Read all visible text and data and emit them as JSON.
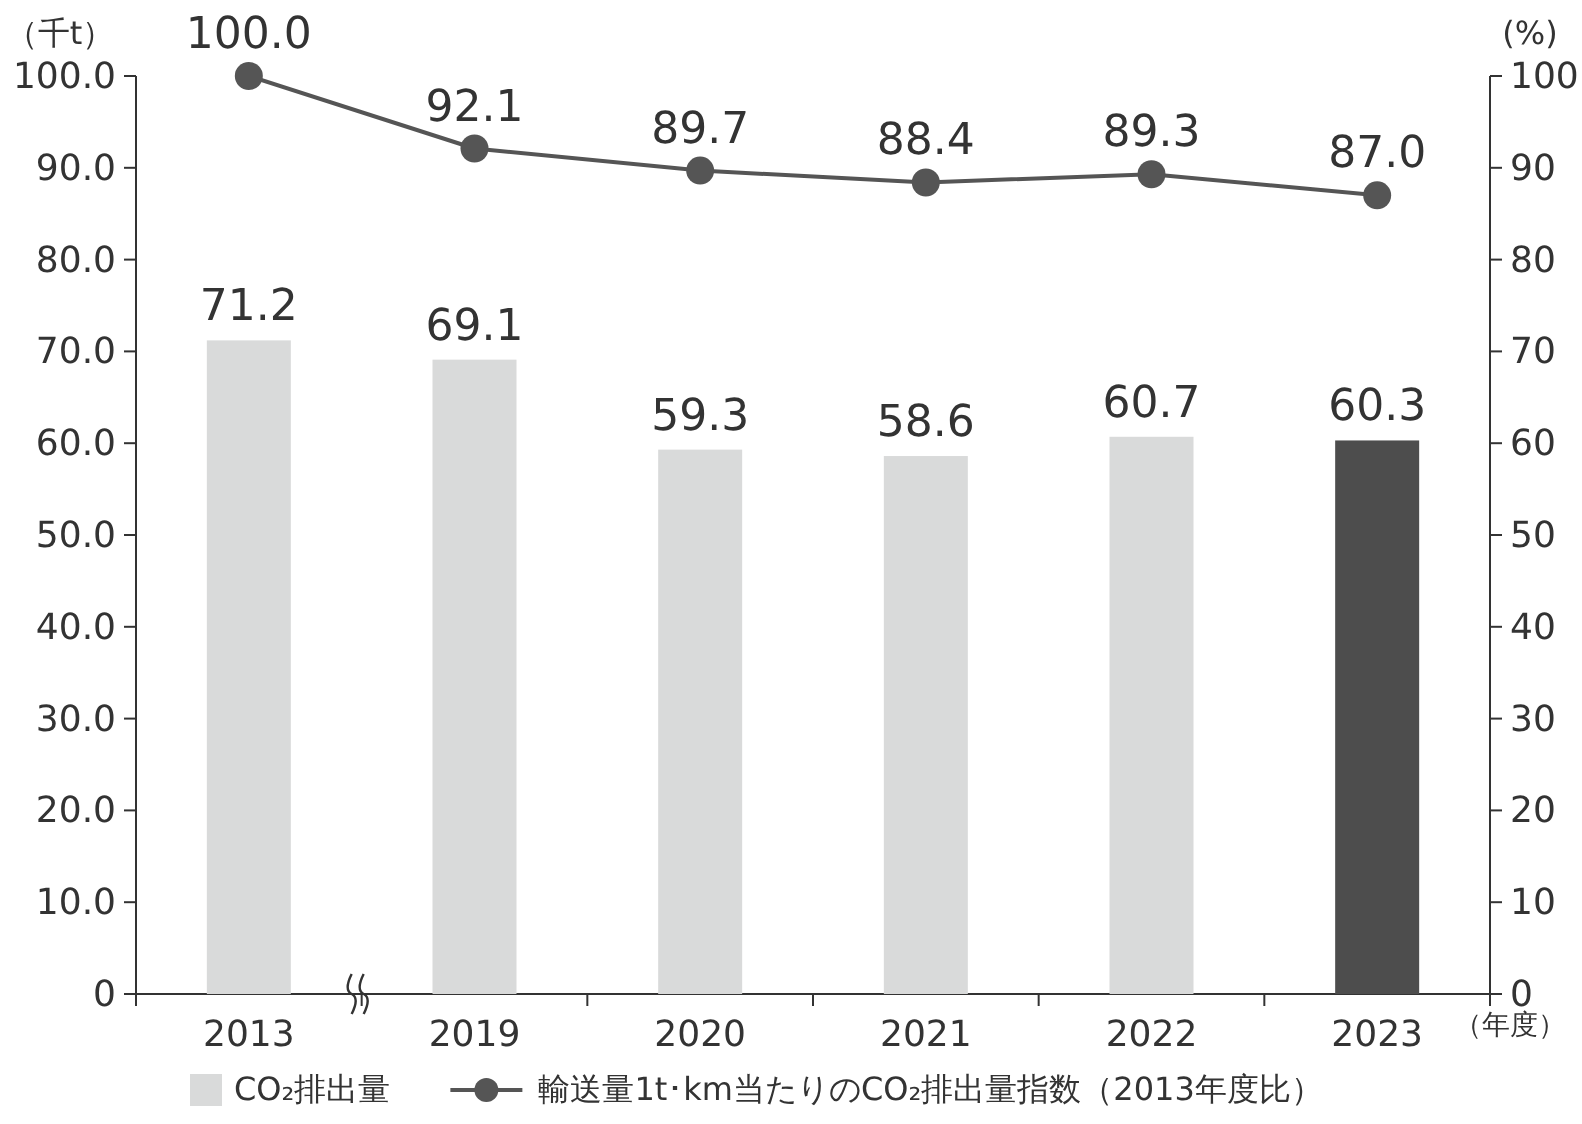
{
  "chart_data": {
    "type": "bar",
    "categories": [
      "2013",
      "2019",
      "2020",
      "2021",
      "2022",
      "2023"
    ],
    "series": [
      {
        "name": "CO₂排出量",
        "value_labels": [
          "71.2",
          "69.1",
          "59.3",
          "58.6",
          "60.7",
          "60.3"
        ],
        "colors": [
          "#d9dada",
          "#d9dada",
          "#d9dada",
          "#d9dada",
          "#d9dada",
          "#4d4d4d"
        ],
        "values": [
          71.2,
          69.1,
          59.3,
          58.6,
          60.7,
          60.3
        ]
      },
      {
        "type": "line",
        "name": "輸送量1t･km当たりのCO₂排出量指数（2013年度比）",
        "color": "#555555",
        "axis": "y2",
        "marker": "circle",
        "value_labels": [
          "100.0",
          "92.1",
          "89.7",
          "88.4",
          "89.3",
          "87.0"
        ],
        "values": [
          100.0,
          92.1,
          89.7,
          88.4,
          89.3,
          87.0
        ]
      }
    ],
    "ylabel": "（千t）",
    "y2label": "(%)",
    "xlabel": "（年度）",
    "ylim": [
      0,
      100
    ],
    "yticks": [
      {
        "value": 0,
        "label": "0"
      },
      {
        "value": 10,
        "label": "10.0"
      },
      {
        "value": 20,
        "label": "20.0"
      },
      {
        "value": 30,
        "label": "30.0"
      },
      {
        "value": 40,
        "label": "40.0"
      },
      {
        "value": 50,
        "label": "50.0"
      },
      {
        "value": 60,
        "label": "60.0"
      },
      {
        "value": 70,
        "label": "70.0"
      },
      {
        "value": 80,
        "label": "80.0"
      },
      {
        "value": 90,
        "label": "90.0"
      },
      {
        "value": 100,
        "label": "100.0"
      }
    ],
    "y2lim": [
      0,
      100
    ],
    "y2ticks": [
      0,
      10,
      20,
      30,
      40,
      50,
      60,
      70,
      80,
      90,
      100
    ],
    "legend": "bottom"
  }
}
